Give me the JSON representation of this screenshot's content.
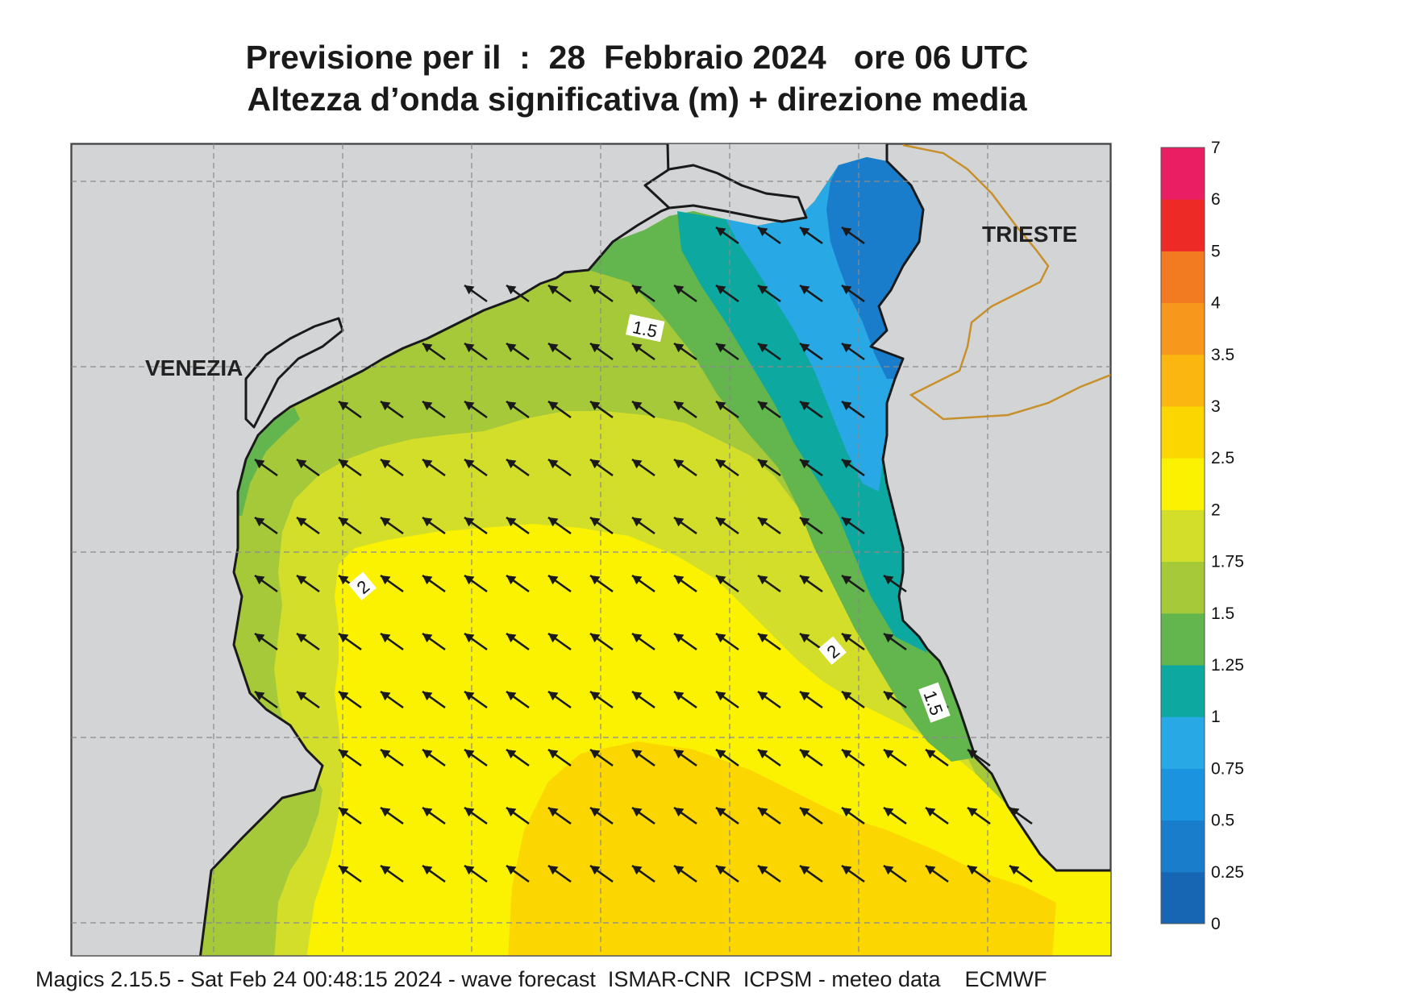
{
  "title": {
    "line1": "Previsione per il  :  28  Febbraio 2024   ore 06 UTC",
    "line2": "Altezza d’onda significativa (m) + direzione media"
  },
  "cities": {
    "venezia": "VENEZIA",
    "trieste": "TRIESTE"
  },
  "contour_labels": [
    "1.5",
    "2",
    "2",
    "1.5"
  ],
  "legend": {
    "ticks": [
      "0",
      "0.25",
      "0.5",
      "0.75",
      "1",
      "1.25",
      "1.5",
      "1.75",
      "2",
      "2.5",
      "3",
      "3.5",
      "4",
      "5",
      "6",
      "7"
    ],
    "colors": [
      "#1666b3",
      "#1a7dcc",
      "#1c93de",
      "#29a8e6",
      "#0da8a0",
      "#63b54e",
      "#a6c93a",
      "#d2de2a",
      "#faf200",
      "#fbd600",
      "#fbb70f",
      "#f7981c",
      "#f27a21",
      "#ee2a26",
      "#ea1f63"
    ]
  },
  "colors": {
    "land": "#d3d4d6",
    "coast": "#1a1a1a",
    "border": "#c8902a",
    "arrow": "#1a1a1a",
    "grid": "#8a8a8a"
  },
  "footer": "Magics 2.15.5 - Sat Feb 24 00:48:15 2024 - wave forecast  ISMAR-CNR  ICPSM - meteo data    ECMWF"
}
